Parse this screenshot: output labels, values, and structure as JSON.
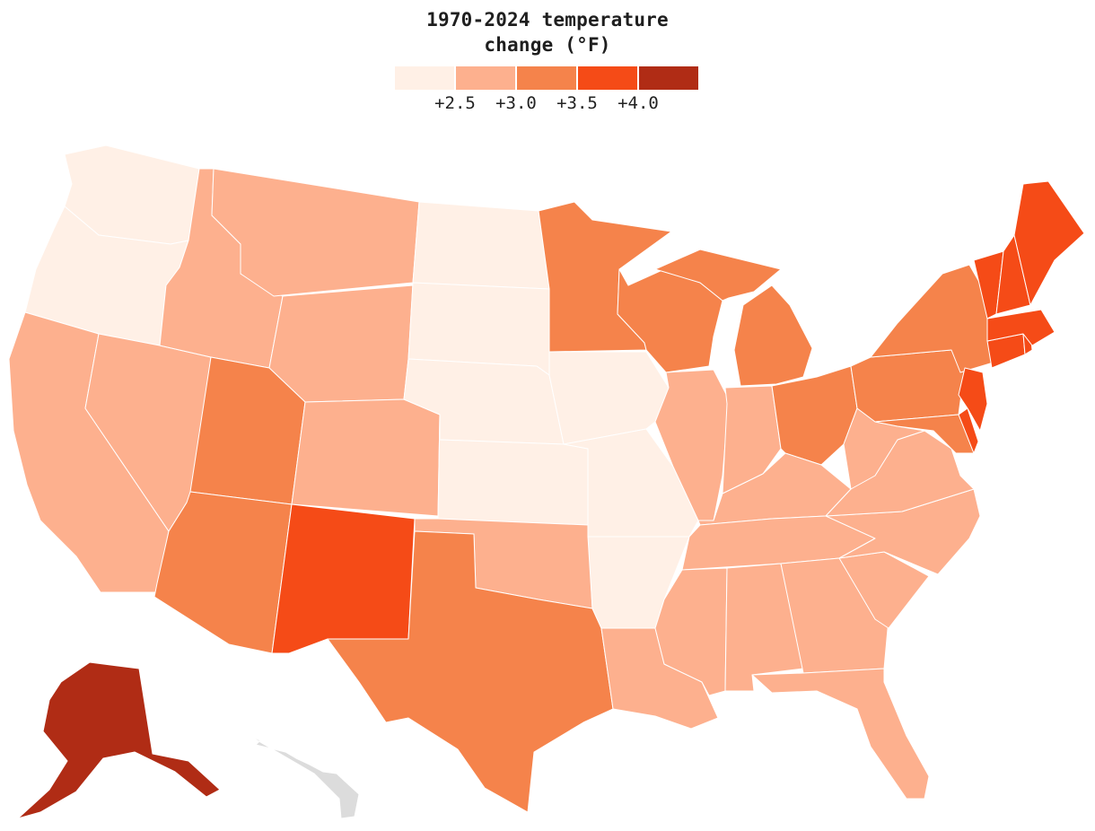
{
  "legend": {
    "title_line1": "1970-2024 temperature",
    "title_line2": "change (°F)",
    "bins": [
      {
        "color": "#fff0e6"
      },
      {
        "color": "#fdb08e"
      },
      {
        "color": "#f5834b"
      },
      {
        "color": "#f54b17"
      },
      {
        "color": "#b02c15"
      }
    ],
    "ticks": [
      "+2.5",
      "+3.0",
      "+3.5",
      "+4.0"
    ]
  },
  "colors": {
    "no_data": "#dcdcdc"
  },
  "states": [
    {
      "id": "WA",
      "bin": 0
    },
    {
      "id": "OR",
      "bin": 0
    },
    {
      "id": "CA",
      "bin": 1
    },
    {
      "id": "NV",
      "bin": 1
    },
    {
      "id": "ID",
      "bin": 1
    },
    {
      "id": "MT",
      "bin": 1
    },
    {
      "id": "WY",
      "bin": 1
    },
    {
      "id": "UT",
      "bin": 2
    },
    {
      "id": "AZ",
      "bin": 2
    },
    {
      "id": "CO",
      "bin": 1
    },
    {
      "id": "NM",
      "bin": 3
    },
    {
      "id": "ND",
      "bin": 0
    },
    {
      "id": "SD",
      "bin": 0
    },
    {
      "id": "NE",
      "bin": 0
    },
    {
      "id": "KS",
      "bin": 0
    },
    {
      "id": "OK",
      "bin": 1
    },
    {
      "id": "TX",
      "bin": 2
    },
    {
      "id": "MN",
      "bin": 2
    },
    {
      "id": "IA",
      "bin": 0
    },
    {
      "id": "MO",
      "bin": 0
    },
    {
      "id": "AR",
      "bin": 0
    },
    {
      "id": "LA",
      "bin": 1
    },
    {
      "id": "WI",
      "bin": 2
    },
    {
      "id": "IL",
      "bin": 1
    },
    {
      "id": "MI",
      "bin": 2
    },
    {
      "id": "IN",
      "bin": 1
    },
    {
      "id": "OH",
      "bin": 2
    },
    {
      "id": "KY",
      "bin": 1
    },
    {
      "id": "TN",
      "bin": 1
    },
    {
      "id": "MS",
      "bin": 1
    },
    {
      "id": "AL",
      "bin": 1
    },
    {
      "id": "GA",
      "bin": 1
    },
    {
      "id": "FL",
      "bin": 1
    },
    {
      "id": "SC",
      "bin": 1
    },
    {
      "id": "NC",
      "bin": 1
    },
    {
      "id": "VA",
      "bin": 1
    },
    {
      "id": "WV",
      "bin": 1
    },
    {
      "id": "PA",
      "bin": 2
    },
    {
      "id": "NY",
      "bin": 2
    },
    {
      "id": "MD",
      "bin": 2
    },
    {
      "id": "DE",
      "bin": 3
    },
    {
      "id": "NJ",
      "bin": 3
    },
    {
      "id": "CT",
      "bin": 3
    },
    {
      "id": "RI",
      "bin": 3
    },
    {
      "id": "MA",
      "bin": 3
    },
    {
      "id": "VT",
      "bin": 3
    },
    {
      "id": "NH",
      "bin": 3
    },
    {
      "id": "ME",
      "bin": 3
    },
    {
      "id": "AK",
      "bin": 4
    },
    {
      "id": "HI",
      "bin": null
    }
  ]
}
